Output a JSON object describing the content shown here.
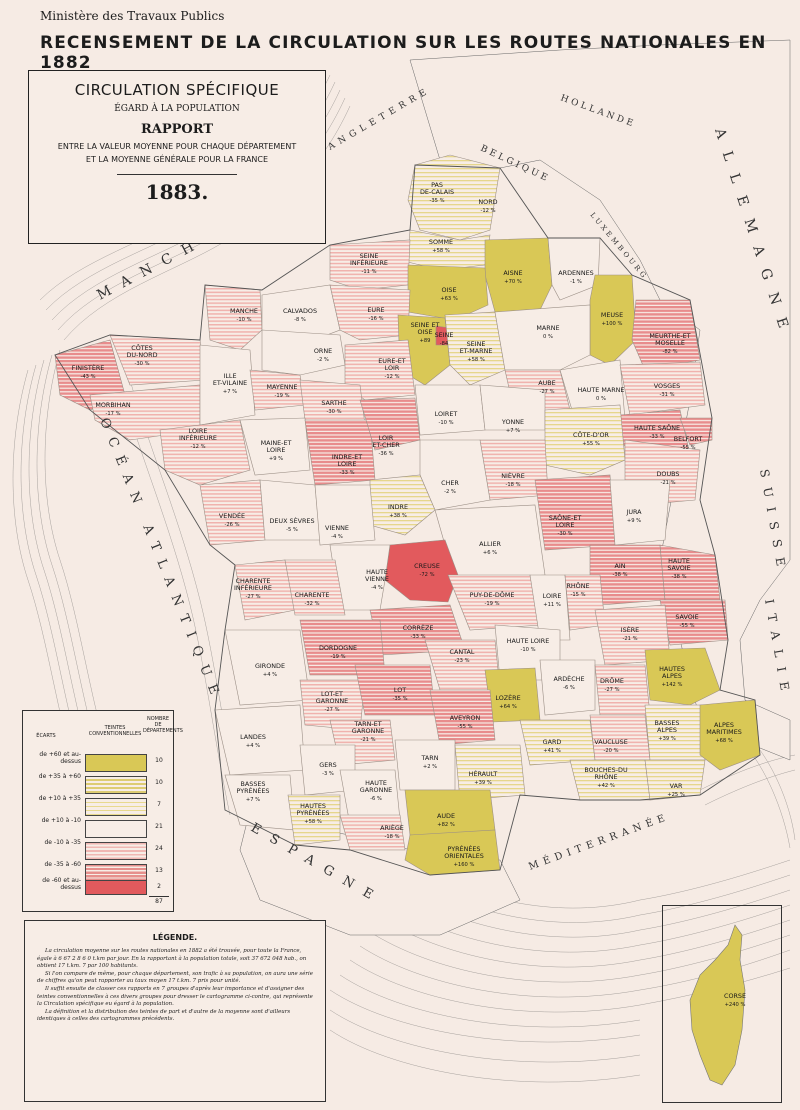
{
  "header": {
    "ministry": "Ministère des Travaux Publics",
    "title": "RECENSEMENT DE LA CIRCULATION SUR LES ROUTES NATIONALES EN 1882"
  },
  "title_box": {
    "line1": "CIRCULATION SPÉCIFIQUE",
    "line2": "ÉGARD À LA POPULATION",
    "line3": "RAPPORT",
    "line4a": "ENTRE LA VALEUR MOYENNE POUR CHAQUE DÉPARTEMENT",
    "line4b": "ET LA MOYENNE GÉNÉRALE POUR LA FRANCE",
    "year": "1883."
  },
  "colors": {
    "background": "#f6ebe4",
    "sea": "#f7ede6",
    "yellow_solid": "#d9c856",
    "yellow_light": "#ecdf9a",
    "pink_light": "#f3c7c2",
    "pink_mid": "#ec9e9d",
    "red_solid": "#e25a5d"
  },
  "legend": {
    "col_ecarts": "ÉCARTS",
    "col_teintes": "TEINTES CONVENTIONNELLES",
    "col_nombre": "NOMBRE DE DÉPARTEMENTS",
    "rows": [
      {
        "label": "de +60 et au-dessus",
        "count": "10",
        "swatch": "solid-yellow"
      },
      {
        "label": "de +35 à +60",
        "count": "10",
        "swatch": "hatch-yellow"
      },
      {
        "label": "de +10 à +35",
        "count": "7",
        "swatch": "light-yellow"
      },
      {
        "label": "de +10 à -10",
        "count": "21",
        "swatch": "blank"
      },
      {
        "label": "de -10 à -35",
        "count": "24",
        "swatch": "hatch-pink"
      },
      {
        "label": "de -35 à -60",
        "count": "13",
        "swatch": "hatch-red"
      },
      {
        "label": "de -60 et au-dessus",
        "count": "2",
        "swatch": "solid-red"
      }
    ],
    "total": "87"
  },
  "text_box": {
    "title": "LÉGENDE.",
    "paragraphs": [
      "La circulation moyenne sur les routes nationales en 1882 a été trouvée, pour toute la France, égale à 6 67 2 8 6 0 t.km par jour. En la rapportant à la population totale, soit 37 672 048 hab., on obtient 17 t.km. 7 par 100 habitants.",
      "Si l'on compare de même, pour chaque département, son trafic à sa population, on aura une série de chiffres qu'on peut rapporter au taux moyen 17 t.km. 7 pris pour unité.",
      "Il suffit ensuite de classer ces rapports en 7 groupes d'après leur importance et d'assigner des teintes conventionnelles à ces divers groupes pour dresser le cartogramme ci-contre, qui représente la Circulation spécifique eu égard à la population.",
      "La définition et la distribution des teintes de part et d'autre de la moyenne sont d'ailleurs identiques à celles des cartogrammes précédents."
    ]
  },
  "countries": {
    "hollande": "HOLLANDE",
    "belgique": "BELGIQUE",
    "luxembourg": "LUXEMBOURG",
    "allemagne": "ALLEMAGNE",
    "suisse": "SUISSE",
    "italie": "ITALIE",
    "espagne": "ESPAGNE",
    "manche": "MANCHE",
    "angleterre": "ANGLETERRE",
    "ocean": "OCÉAN ATLANTIQUE",
    "mediterranee": "MÉDITERRANÉE"
  },
  "departments": [
    {
      "name": "PAS DE-CALAIS",
      "value": "-35 %",
      "color": "hatch-yellow"
    },
    {
      "name": "NORD",
      "value": "-12 %",
      "color": "hatch-yellow"
    },
    {
      "name": "SOMME",
      "value": "+58 %",
      "color": "light-yellow"
    },
    {
      "name": "AISNE",
      "value": "+70 %",
      "color": "solid-yellow"
    },
    {
      "name": "ARDENNES",
      "value": "-1 %",
      "color": "blank"
    },
    {
      "name": "SEINE INFÉRIEURE",
      "value": "-11 %",
      "color": "hatch-pink"
    },
    {
      "name": "OISE",
      "value": "+63 %",
      "color": "solid-yellow"
    },
    {
      "name": "MEUSE",
      "value": "+100 %",
      "color": "solid-yellow"
    },
    {
      "name": "MANCHE",
      "value": "-10 %",
      "color": "hatch-pink"
    },
    {
      "name": "CALVADOS",
      "value": "-8 %",
      "color": "blank"
    },
    {
      "name": "EURE",
      "value": "-16 %",
      "color": "hatch-pink"
    },
    {
      "name": "SEINE ET OISE",
      "value": "+89",
      "color": "solid-yellow"
    },
    {
      "name": "SEINE",
      "value": "-84",
      "color": "solid-red"
    },
    {
      "name": "SEINE ET-MARNE",
      "value": "+58 %",
      "color": "light-yellow"
    },
    {
      "name": "MARNE",
      "value": "0 %",
      "color": "blank"
    },
    {
      "name": "MEURTHE-ET MOSELLE",
      "value": "-82 %",
      "color": "hatch-red"
    },
    {
      "name": "FINISTÈRE",
      "value": "-43 %",
      "color": "hatch-red"
    },
    {
      "name": "CÔTES DU-NORD",
      "value": "-30 %",
      "color": "hatch-pink"
    },
    {
      "name": "ORNE",
      "value": "-2 %",
      "color": "blank"
    },
    {
      "name": "EURE-ET LOIR",
      "value": "-12 %",
      "color": "hatch-pink"
    },
    {
      "name": "AUBE",
      "value": "-27 %",
      "color": "hatch-pink"
    },
    {
      "name": "HAUTE MARNE",
      "value": "0 %",
      "color": "blank"
    },
    {
      "name": "VOSGES",
      "value": "-31 %",
      "color": "hatch-pink"
    },
    {
      "name": "MORBIHAN",
      "value": "-17 %",
      "color": "hatch-pink"
    },
    {
      "name": "ILLE ET-VILAINE",
      "value": "+7 %",
      "color": "blank"
    },
    {
      "name": "MAYENNE",
      "value": "-19 %",
      "color": "hatch-pink"
    },
    {
      "name": "SARTHE",
      "value": "-30 %",
      "color": "hatch-pink"
    },
    {
      "name": "LOIRET",
      "value": "-10 %",
      "color": "blank"
    },
    {
      "name": "YONNE",
      "value": "+7 %",
      "color": "blank"
    },
    {
      "name": "HAUTE SAÔNE",
      "value": "-33 %",
      "color": "hatch-red"
    },
    {
      "name": "BELFORT",
      "value": "-55 %",
      "color": "hatch-red"
    },
    {
      "name": "LOIR ET-CHER",
      "value": "-36 %",
      "color": "hatch-red"
    },
    {
      "name": "LOIRE INFÉRIEURE",
      "value": "-12 %",
      "color": "hatch-pink"
    },
    {
      "name": "MAINE-ET LOIRE",
      "value": "+9 %",
      "color": "blank"
    },
    {
      "name": "INDRE-ET LOIRE",
      "value": "-33 %",
      "color": "hatch-red"
    },
    {
      "name": "CÔTE-D'OR",
      "value": "+55 %",
      "color": "light-yellow"
    },
    {
      "name": "DOUBS",
      "value": "-21 %",
      "color": "hatch-pink"
    },
    {
      "name": "NIÈVRE",
      "value": "-18 %",
      "color": "hatch-pink"
    },
    {
      "name": "CHER",
      "value": "-2 %",
      "color": "blank"
    },
    {
      "name": "INDRE",
      "value": "+38 %",
      "color": "light-yellow"
    },
    {
      "name": "VENDÉE",
      "value": "-26 %",
      "color": "hatch-pink"
    },
    {
      "name": "DEUX SÈVRES",
      "value": "-5 %",
      "color": "blank"
    },
    {
      "name": "VIENNE",
      "value": "-4 %",
      "color": "blank"
    },
    {
      "name": "SAÔNE-ET LOIRE",
      "value": "-30 %",
      "color": "hatch-red"
    },
    {
      "name": "JURA",
      "value": "+9 %",
      "color": "blank"
    },
    {
      "name": "ALLIER",
      "value": "+6 %",
      "color": "blank"
    },
    {
      "name": "CREUSE",
      "value": "-72 %",
      "color": "solid-red"
    },
    {
      "name": "AIN",
      "value": "-38 %",
      "color": "hatch-red"
    },
    {
      "name": "HAUTE SAVOIE",
      "value": "-38 %",
      "color": "hatch-red"
    },
    {
      "name": "HAUTE VIENNE",
      "value": "-4 %",
      "color": "blank"
    },
    {
      "name": "CHARENTE INFÉRIEURE",
      "value": "-27 %",
      "color": "hatch-pink"
    },
    {
      "name": "CHARENTE",
      "value": "-32 %",
      "color": "hatch-pink"
    },
    {
      "name": "PUY-DE-DÔME",
      "value": "-19 %",
      "color": "hatch-pink"
    },
    {
      "name": "LOIRE",
      "value": "+11 %",
      "color": "blank"
    },
    {
      "name": "RHÔNE",
      "value": "-15 %",
      "color": "hatch-pink"
    },
    {
      "name": "SAVOIE",
      "value": "-55 %",
      "color": "hatch-red"
    },
    {
      "name": "CORRÈZE",
      "value": "-33 %",
      "color": "hatch-red"
    },
    {
      "name": "ISÈRE",
      "value": "-21 %",
      "color": "hatch-pink"
    },
    {
      "name": "HAUTE LOIRE",
      "value": "-10 %",
      "color": "blank"
    },
    {
      "name": "DORDOGNE",
      "value": "-19 %",
      "color": "hatch-red"
    },
    {
      "name": "CANTAL",
      "value": "-23 %",
      "color": "hatch-pink"
    },
    {
      "name": "GIRONDE",
      "value": "+4 %",
      "color": "blank"
    },
    {
      "name": "ARDÈCHE",
      "value": "-6 %",
      "color": "blank"
    },
    {
      "name": "DRÔME",
      "value": "-27 %",
      "color": "hatch-pink"
    },
    {
      "name": "HAUTES ALPES",
      "value": "+142 %",
      "color": "solid-yellow"
    },
    {
      "name": "LOT-ET GARONNE",
      "value": "-27 %",
      "color": "hatch-pink"
    },
    {
      "name": "LOT",
      "value": "-35 %",
      "color": "hatch-red"
    },
    {
      "name": "LOZÈRE",
      "value": "+64 %",
      "color": "solid-yellow"
    },
    {
      "name": "AVEYRON",
      "value": "-55 %",
      "color": "hatch-red"
    },
    {
      "name": "LANDES",
      "value": "+4 %",
      "color": "blank"
    },
    {
      "name": "TARN-ET GARONNE",
      "value": "-21 %",
      "color": "hatch-pink"
    },
    {
      "name": "GARD",
      "value": "+41 %",
      "color": "light-yellow"
    },
    {
      "name": "VAUCLUSE",
      "value": "-20 %",
      "color": "hatch-pink"
    },
    {
      "name": "BASSES ALPES",
      "value": "+39 %",
      "color": "light-yellow"
    },
    {
      "name": "ALPES MARITIMES",
      "value": "+68 %",
      "color": "solid-yellow"
    },
    {
      "name": "GERS",
      "value": "-3 %",
      "color": "blank"
    },
    {
      "name": "TARN",
      "value": "+2 %",
      "color": "blank"
    },
    {
      "name": "BOUCHES-DU RHÔNE",
      "value": "+42 %",
      "color": "light-yellow"
    },
    {
      "name": "VAR",
      "value": "+25 %",
      "color": "light-yellow"
    },
    {
      "name": "HÉRAULT",
      "value": "+39 %",
      "color": "light-yellow"
    },
    {
      "name": "BASSES PYRÉNÉES",
      "value": "+7 %",
      "color": "blank"
    },
    {
      "name": "HAUTE GARONNE",
      "value": "-6 %",
      "color": "blank"
    },
    {
      "name": "HAUTES PYRÉNÉES",
      "value": "+58 %",
      "color": "light-yellow"
    },
    {
      "name": "ARIÈGE",
      "value": "-18 %",
      "color": "hatch-pink"
    },
    {
      "name": "AUDE",
      "value": "+82 %",
      "color": "solid-yellow"
    },
    {
      "name": "PYRÉNÉES ORIENTALES",
      "value": "+160 %",
      "color": "solid-yellow"
    },
    {
      "name": "CORSE",
      "value": "+240 %",
      "color": "solid-yellow"
    }
  ]
}
